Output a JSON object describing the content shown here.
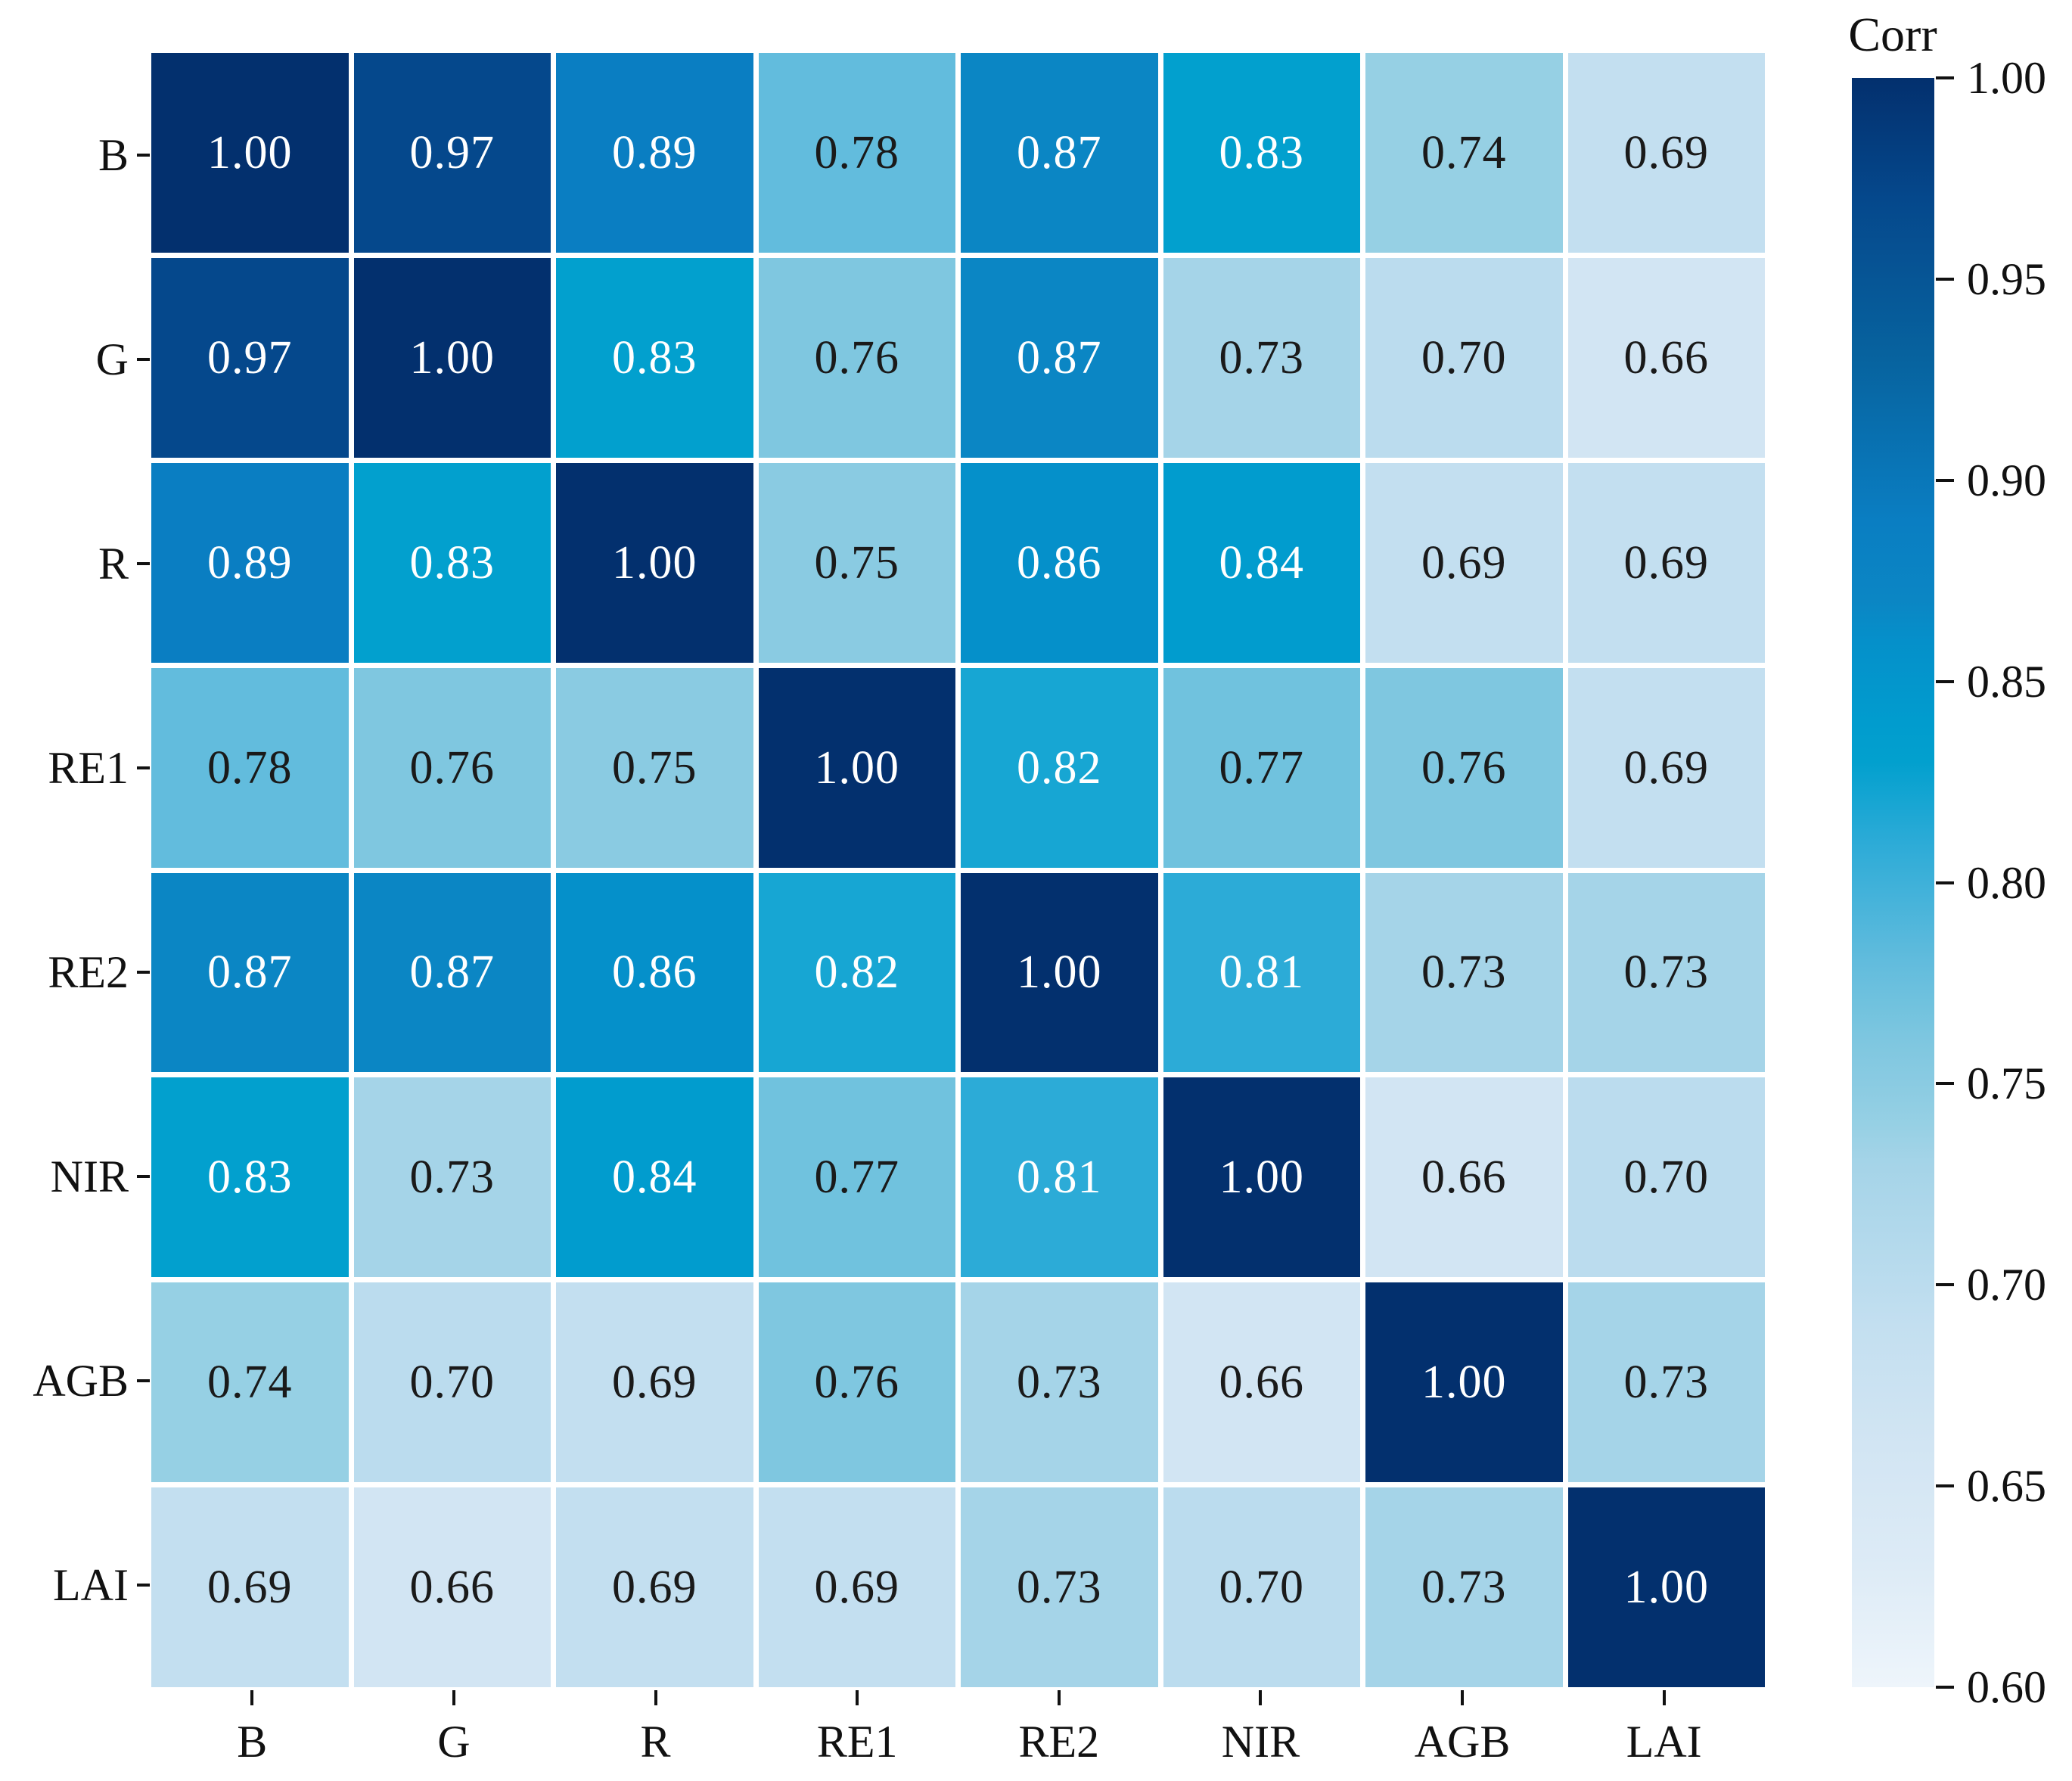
{
  "chart_data": {
    "type": "heatmap",
    "title": "",
    "categories": [
      "B",
      "G",
      "R",
      "RE1",
      "RE2",
      "NIR",
      "AGB",
      "LAI"
    ],
    "matrix": [
      [
        1.0,
        0.97,
        0.89,
        0.78,
        0.87,
        0.83,
        0.74,
        0.69
      ],
      [
        0.97,
        1.0,
        0.83,
        0.76,
        0.87,
        0.73,
        0.7,
        0.66
      ],
      [
        0.89,
        0.83,
        1.0,
        0.75,
        0.86,
        0.84,
        0.69,
        0.69
      ],
      [
        0.78,
        0.76,
        0.75,
        1.0,
        0.82,
        0.77,
        0.76,
        0.69
      ],
      [
        0.87,
        0.87,
        0.86,
        0.82,
        1.0,
        0.81,
        0.73,
        0.73
      ],
      [
        0.83,
        0.73,
        0.84,
        0.77,
        0.81,
        1.0,
        0.66,
        0.7
      ],
      [
        0.74,
        0.7,
        0.69,
        0.76,
        0.73,
        0.66,
        1.0,
        0.73
      ],
      [
        0.69,
        0.66,
        0.69,
        0.69,
        0.73,
        0.7,
        0.73,
        1.0
      ]
    ],
    "vmin": 0.6,
    "vmax": 1.0,
    "colorbar": {
      "label": "Corr",
      "ticks": [
        "1.00",
        "0.95",
        "0.90",
        "0.85",
        "0.80",
        "0.75",
        "0.70",
        "0.65",
        "0.60"
      ]
    },
    "colormap_stops": [
      {
        "v": 0.6,
        "c": "#eef5fb"
      },
      {
        "v": 0.63,
        "c": "#ddebf6"
      },
      {
        "v": 0.66,
        "c": "#d2e5f3"
      },
      {
        "v": 0.69,
        "c": "#c3dff0"
      },
      {
        "v": 0.7,
        "c": "#bbdcee"
      },
      {
        "v": 0.73,
        "c": "#a5d4e8"
      },
      {
        "v": 0.74,
        "c": "#96d0e4"
      },
      {
        "v": 0.75,
        "c": "#8acbe2"
      },
      {
        "v": 0.76,
        "c": "#7fc7e0"
      },
      {
        "v": 0.77,
        "c": "#70c2de"
      },
      {
        "v": 0.78,
        "c": "#62bcdd"
      },
      {
        "v": 0.81,
        "c": "#2cabd7"
      },
      {
        "v": 0.83,
        "c": "#02a0ce"
      },
      {
        "v": 0.84,
        "c": "#019cce"
      },
      {
        "v": 0.86,
        "c": "#0590ca"
      },
      {
        "v": 0.87,
        "c": "#0b86c4"
      },
      {
        "v": 0.89,
        "c": "#0a7ec2"
      },
      {
        "v": 0.93,
        "c": "#07639f"
      },
      {
        "v": 0.97,
        "c": "#05488c"
      },
      {
        "v": 1.0,
        "c": "#03306e"
      }
    ],
    "text_rules": {
      "white_text_min": 0.8,
      "white": "#ffffff",
      "dark": "#1a1a1a"
    },
    "grid_gap_color": "#ffffff",
    "background": "#ffffff"
  }
}
